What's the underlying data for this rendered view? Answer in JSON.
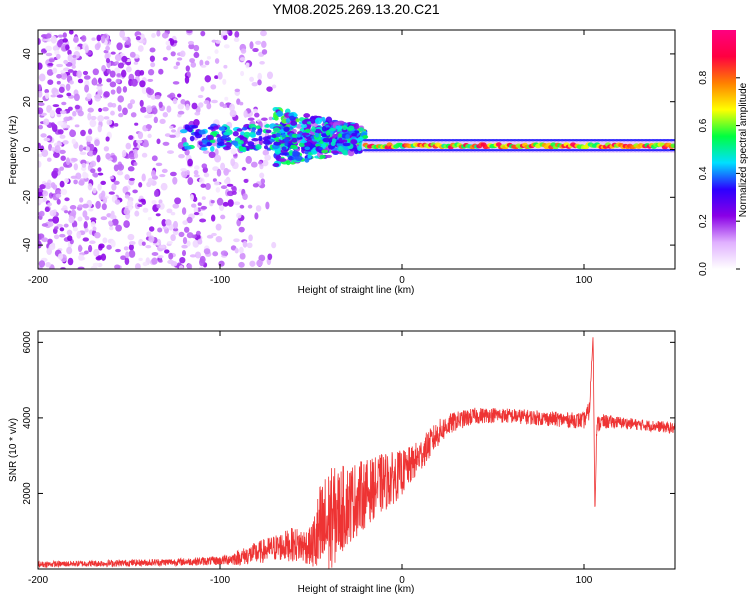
{
  "title": "YM08.2025.269.13.20.C21",
  "chart_data": [
    {
      "type": "heatmap",
      "title": "YM08.2025.269.13.20.C21",
      "xlabel": "Height of straight line (km)",
      "ylabel": "Frequency (Hz)",
      "xlim": [
        -200,
        150
      ],
      "ylim": [
        -50,
        50
      ],
      "xticks": [
        -200,
        -100,
        0,
        100
      ],
      "yticks": [
        -40,
        -20,
        0,
        20,
        40
      ],
      "xtick_labels": [
        "-200",
        "-100",
        "0",
        "100"
      ],
      "ytick_labels": [
        "-40",
        "-20",
        "0",
        "20",
        "40"
      ],
      "colorbar": {
        "label": "Normalized spectral amplitude",
        "range": [
          0,
          1
        ],
        "ticks": [
          0.0,
          0.2,
          0.4,
          0.6,
          0.8
        ],
        "tick_labels": [
          "0.0",
          "0.2",
          "0.4",
          "0.6",
          "0.8"
        ],
        "colormap": [
          "#ffffff",
          "#e0b0ff",
          "#8a00e6",
          "#2c00ff",
          "#00e0ff",
          "#00ff40",
          "#ffff00",
          "#ff8000",
          "#ff0040",
          "#ff0080"
        ]
      },
      "features": [
        {
          "name": "broadband-noise",
          "x_range": [
            -200,
            -70
          ],
          "freq_range": [
            -50,
            50
          ],
          "amplitude": 0.15
        },
        {
          "name": "transition-band",
          "x_range": [
            -70,
            -20
          ],
          "freq_range": [
            -15,
            25
          ],
          "amplitude": 0.35
        },
        {
          "name": "narrow-line",
          "x_range": [
            -20,
            150
          ],
          "freq_center": 1.5,
          "freq_halfwidth": 3,
          "amplitude": 0.9
        }
      ]
    },
    {
      "type": "line",
      "xlabel": "Height of straight line (km)",
      "ylabel": "SNR (10 * v/v)",
      "xlim": [
        -200,
        150
      ],
      "ylim": [
        0,
        6300
      ],
      "xticks": [
        -200,
        -100,
        0,
        100
      ],
      "yticks": [
        2000,
        4000,
        6000
      ],
      "xtick_labels": [
        "-200",
        "-100",
        "0",
        "100"
      ],
      "ytick_labels": [
        "2000",
        "4000",
        "6000"
      ],
      "series": [
        {
          "name": "SNR",
          "color": "#ee3333",
          "x": [
            -200,
            -180,
            -160,
            -140,
            -120,
            -100,
            -90,
            -80,
            -70,
            -60,
            -50,
            -45,
            -40,
            -35,
            -30,
            -25,
            -20,
            -15,
            -10,
            -5,
            0,
            5,
            10,
            15,
            20,
            25,
            30,
            40,
            50,
            60,
            70,
            80,
            90,
            100,
            103,
            105,
            106,
            107,
            110,
            120,
            130,
            140,
            150
          ],
          "values": [
            120,
            140,
            150,
            170,
            190,
            220,
            300,
            420,
            560,
            650,
            600,
            900,
            1200,
            1500,
            1700,
            1850,
            2000,
            2150,
            2300,
            2400,
            2550,
            2750,
            3000,
            3300,
            3600,
            3800,
            3920,
            4050,
            4080,
            4050,
            4020,
            3980,
            3950,
            3930,
            4200,
            6200,
            1450,
            3800,
            3900,
            3880,
            3820,
            3780,
            3720
          ],
          "noise_amplitude": [
            80,
            80,
            90,
            90,
            100,
            120,
            200,
            300,
            350,
            450,
            500,
            1400,
            1500,
            1200,
            1100,
            1000,
            900,
            800,
            800,
            700,
            600,
            500,
            450,
            400,
            350,
            300,
            250,
            220,
            200,
            200,
            200,
            200,
            200,
            220,
            250,
            0,
            0,
            250,
            200,
            150,
            150,
            150,
            150
          ]
        }
      ]
    }
  ]
}
